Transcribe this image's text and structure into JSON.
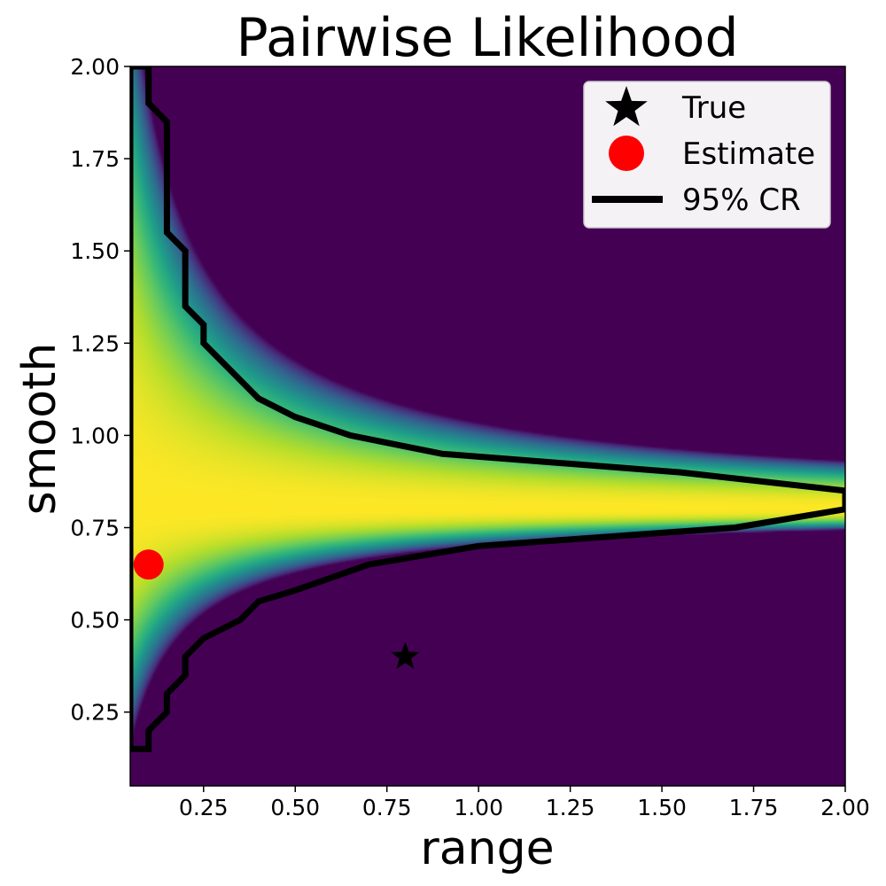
{
  "chart_data": {
    "type": "heatmap",
    "title": "Pairwise Likelihood",
    "xlabel": "range",
    "ylabel": "smooth",
    "xlim": [
      0.05,
      2.0
    ],
    "ylim": [
      0.05,
      2.0
    ],
    "x_ticks": [
      "0.25",
      "0.50",
      "0.75",
      "1.00",
      "1.25",
      "1.50",
      "1.75",
      "2.00"
    ],
    "y_ticks": [
      "0.25",
      "0.50",
      "0.75",
      "1.00",
      "1.25",
      "1.50",
      "1.75",
      "2.00"
    ],
    "colormap": "viridis",
    "colors": {
      "low": "#440154",
      "high": "#fde725",
      "estimate": "#ff0000",
      "true": "#000000",
      "region": "#000000"
    },
    "ridge_smooth": 0.8,
    "true_point": {
      "range": 0.8,
      "smooth": 0.4
    },
    "estimate_point": {
      "range": 0.1,
      "smooth": 0.65
    },
    "credible_region": [
      [
        0.05,
        0.15
      ],
      [
        0.1,
        0.15
      ],
      [
        0.1,
        0.2
      ],
      [
        0.15,
        0.25
      ],
      [
        0.15,
        0.3
      ],
      [
        0.2,
        0.35
      ],
      [
        0.2,
        0.4
      ],
      [
        0.25,
        0.45
      ],
      [
        0.35,
        0.5
      ],
      [
        0.4,
        0.55
      ],
      [
        0.5,
        0.58
      ],
      [
        0.7,
        0.65
      ],
      [
        1.0,
        0.7
      ],
      [
        1.7,
        0.75
      ],
      [
        2.0,
        0.8
      ],
      [
        2.0,
        0.85
      ],
      [
        1.55,
        0.9
      ],
      [
        0.9,
        0.95
      ],
      [
        0.65,
        1.0
      ],
      [
        0.5,
        1.05
      ],
      [
        0.4,
        1.1
      ],
      [
        0.25,
        1.25
      ],
      [
        0.25,
        1.3
      ],
      [
        0.2,
        1.35
      ],
      [
        0.2,
        1.5
      ],
      [
        0.15,
        1.55
      ],
      [
        0.15,
        1.85
      ],
      [
        0.1,
        1.9
      ],
      [
        0.1,
        2.0
      ],
      [
        0.05,
        2.0
      ]
    ],
    "legend": {
      "position": "top-right",
      "entries": [
        {
          "label": "True",
          "marker": "star"
        },
        {
          "label": "Estimate",
          "marker": "circle"
        },
        {
          "label": "95% CR",
          "marker": "line"
        }
      ]
    }
  }
}
